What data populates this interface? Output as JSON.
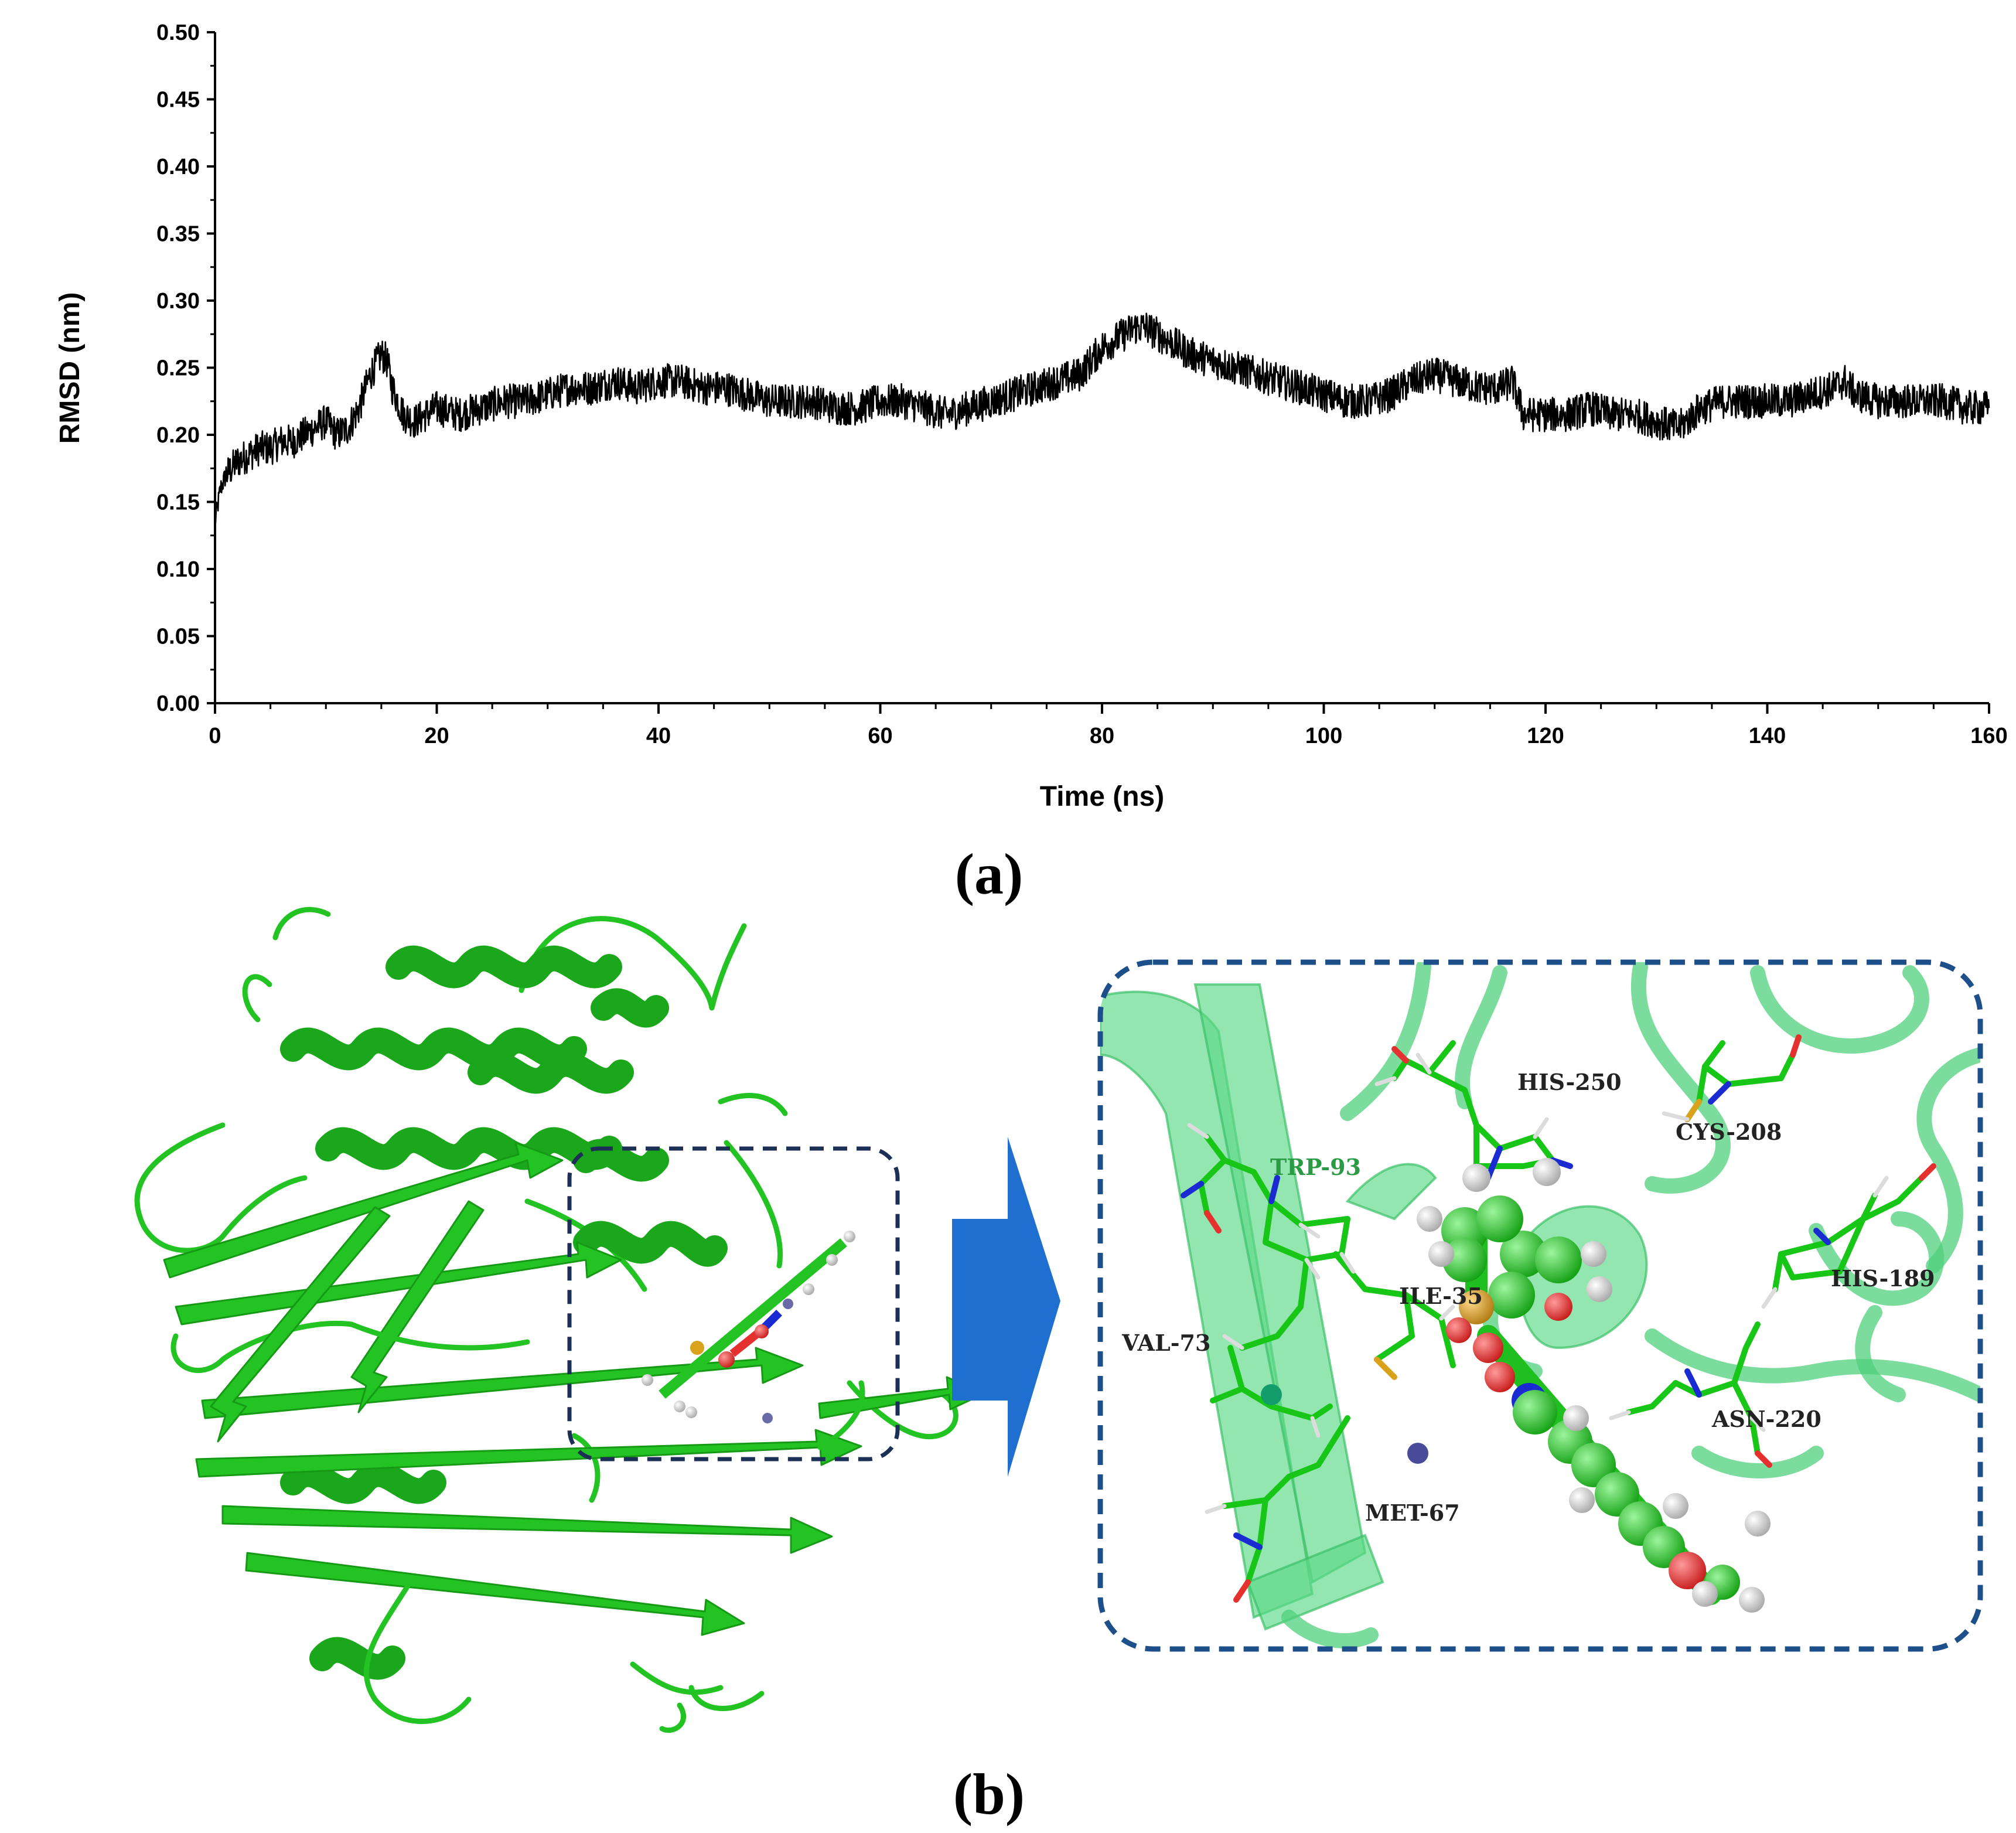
{
  "chart_data": {
    "type": "line",
    "xlabel": "Time (ns)",
    "ylabel": "RMSD (nm)",
    "xlim": [
      0,
      160
    ],
    "ylim": [
      0,
      0.5
    ],
    "xticks": [
      "0",
      "20",
      "40",
      "60",
      "80",
      "100",
      "120",
      "140",
      "160"
    ],
    "yticks": [
      "0.00",
      "0.05",
      "0.10",
      "0.15",
      "0.20",
      "0.25",
      "0.30",
      "0.35",
      "0.40",
      "0.45",
      "0.50"
    ],
    "grid": false,
    "line_color": "#000000",
    "series": [
      {
        "x": [
          0,
          0.5,
          1,
          2,
          3,
          4,
          5,
          6,
          7,
          8,
          9,
          10,
          11,
          12,
          13,
          14,
          15,
          15.5,
          16,
          17,
          18,
          20,
          22,
          24,
          26,
          28,
          30,
          32,
          34,
          36,
          38,
          40,
          42,
          44,
          46,
          48,
          50,
          52,
          54,
          56,
          58,
          60,
          62,
          64,
          66,
          68,
          70,
          72,
          74,
          76,
          78,
          80,
          81,
          82,
          83,
          84,
          85,
          86,
          88,
          90,
          92,
          94,
          96,
          98,
          100,
          102,
          104,
          106,
          108,
          110,
          112,
          114,
          116,
          117,
          118,
          120,
          122,
          124,
          126,
          128,
          130,
          132,
          134,
          136,
          138,
          140,
          142,
          144,
          146,
          147,
          148,
          150,
          152,
          154,
          156,
          158,
          160
        ],
        "y": [
          0.135,
          0.16,
          0.17,
          0.18,
          0.185,
          0.19,
          0.19,
          0.195,
          0.195,
          0.2,
          0.205,
          0.21,
          0.2,
          0.205,
          0.22,
          0.245,
          0.26,
          0.255,
          0.235,
          0.215,
          0.21,
          0.22,
          0.215,
          0.22,
          0.225,
          0.225,
          0.23,
          0.235,
          0.235,
          0.24,
          0.235,
          0.24,
          0.24,
          0.235,
          0.235,
          0.23,
          0.225,
          0.225,
          0.225,
          0.22,
          0.22,
          0.225,
          0.225,
          0.22,
          0.215,
          0.22,
          0.225,
          0.23,
          0.235,
          0.24,
          0.245,
          0.265,
          0.27,
          0.275,
          0.28,
          0.28,
          0.275,
          0.27,
          0.26,
          0.255,
          0.25,
          0.245,
          0.24,
          0.235,
          0.23,
          0.225,
          0.225,
          0.23,
          0.24,
          0.245,
          0.24,
          0.235,
          0.235,
          0.24,
          0.215,
          0.215,
          0.215,
          0.22,
          0.215,
          0.215,
          0.21,
          0.205,
          0.22,
          0.225,
          0.225,
          0.225,
          0.225,
          0.23,
          0.235,
          0.24,
          0.23,
          0.225,
          0.225,
          0.225,
          0.225,
          0.22,
          0.22
        ]
      }
    ]
  },
  "panels": {
    "a_label": "(a)",
    "b_label": "(b)"
  },
  "residues": [
    "HIS-250",
    "CYS-208",
    "TRP-93",
    "HIS-189",
    "ILE-35",
    "VAL-73",
    "ASN-220",
    "MET-67"
  ],
  "colors": {
    "protein": "#22c322",
    "protein_translucent": "#3fcf6e",
    "box_dash": "#1c2f55",
    "arrow": "#1f6fd0",
    "oxygen": "#e53030",
    "nitrogen": "#1a2bd1",
    "sulfur": "#d9a21b",
    "hydrogen": "#e6e6e6"
  }
}
